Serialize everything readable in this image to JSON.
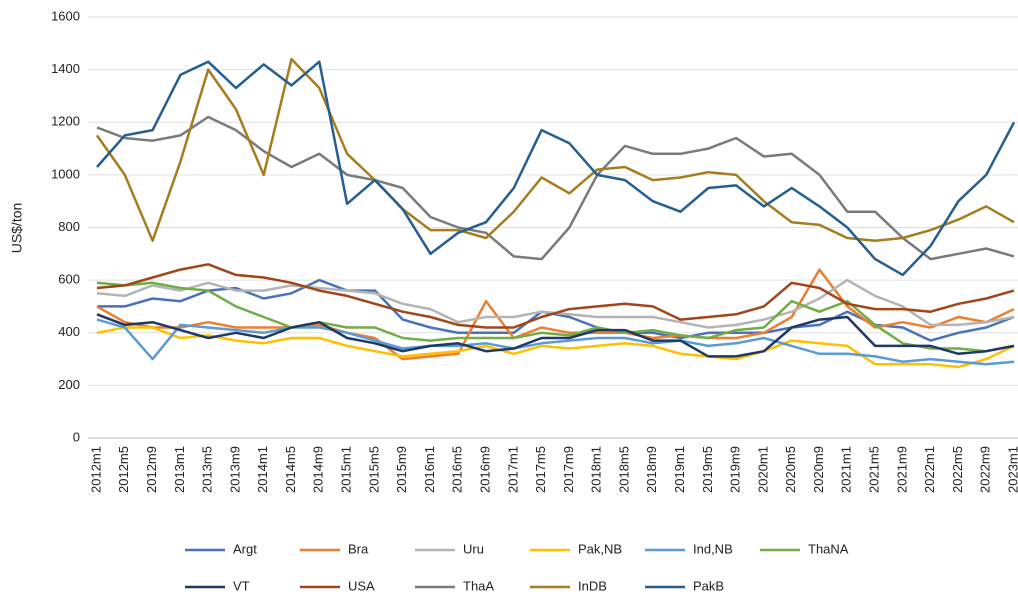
{
  "chart_data": {
    "type": "line",
    "y_label": "US$/ton",
    "categories": [
      "2012m1",
      "2012m5",
      "2012m9",
      "2013m1",
      "2013m5",
      "2013m9",
      "2014m1",
      "2014m5",
      "2014m9",
      "2015m1",
      "2015m5",
      "2015m9",
      "2016m1",
      "2016m5",
      "2016m9",
      "2017m1",
      "2017m5",
      "2017m9",
      "2018m1",
      "2018m5",
      "2018m9",
      "2019m1",
      "2019m5",
      "2019m9",
      "2020m1",
      "2020m5",
      "2020m9",
      "2021m1",
      "2021m5",
      "2021m9",
      "2022m1",
      "2022m5",
      "2022m9",
      "2023m1"
    ],
    "ylim": [
      0,
      1600
    ],
    "yticks": [
      0,
      200,
      400,
      600,
      800,
      1000,
      1200,
      1400,
      1600
    ],
    "grid": true,
    "legend": "bottom",
    "series": [
      {
        "name": "Argt",
        "color": "#4a72b8",
        "values": [
          500,
          500,
          530,
          520,
          560,
          570,
          530,
          550,
          600,
          560,
          560,
          450,
          420,
          400,
          400,
          400,
          480,
          460,
          420,
          400,
          400,
          380,
          400,
          400,
          400,
          420,
          430,
          480,
          430,
          420,
          370,
          400,
          420,
          460
        ]
      },
      {
        "name": "Bra",
        "color": "#ed7d31",
        "values": [
          500,
          440,
          420,
          420,
          440,
          420,
          420,
          420,
          430,
          400,
          380,
          300,
          310,
          320,
          520,
          380,
          420,
          400,
          400,
          400,
          380,
          390,
          380,
          380,
          400,
          460,
          640,
          500,
          420,
          440,
          420,
          460,
          440,
          490
        ]
      },
      {
        "name": "Uru",
        "color": "#b4b4b4",
        "values": [
          550,
          540,
          580,
          560,
          590,
          560,
          560,
          580,
          570,
          560,
          550,
          510,
          490,
          440,
          460,
          460,
          480,
          470,
          460,
          460,
          460,
          440,
          420,
          430,
          450,
          480,
          530,
          600,
          540,
          500,
          430,
          430,
          440,
          460
        ]
      },
      {
        "name": "Pak,NB",
        "color": "#ffc000",
        "values": [
          400,
          420,
          420,
          380,
          390,
          370,
          360,
          380,
          380,
          350,
          330,
          310,
          320,
          330,
          350,
          320,
          350,
          340,
          350,
          360,
          350,
          320,
          310,
          300,
          330,
          370,
          360,
          350,
          280,
          280,
          280,
          270,
          300,
          350
        ]
      },
      {
        "name": "Ind,NB",
        "color": "#5b9bd5",
        "values": [
          450,
          420,
          300,
          430,
          420,
          410,
          400,
          420,
          420,
          400,
          370,
          340,
          350,
          350,
          360,
          340,
          360,
          370,
          380,
          380,
          360,
          370,
          350,
          360,
          380,
          350,
          320,
          320,
          310,
          290,
          300,
          290,
          280,
          290
        ]
      },
      {
        "name": "ThaNA",
        "color": "#70ad47",
        "values": [
          590,
          580,
          590,
          570,
          560,
          500,
          460,
          420,
          440,
          420,
          420,
          380,
          370,
          380,
          380,
          380,
          400,
          390,
          420,
          400,
          410,
          390,
          380,
          410,
          420,
          520,
          480,
          520,
          430,
          360,
          340,
          340,
          330,
          350
        ]
      },
      {
        "name": "VT",
        "color": "#1f3864",
        "values": [
          470,
          430,
          440,
          410,
          380,
          400,
          380,
          420,
          440,
          380,
          360,
          330,
          350,
          360,
          330,
          340,
          380,
          380,
          410,
          410,
          370,
          370,
          310,
          310,
          330,
          420,
          450,
          460,
          350,
          350,
          350,
          320,
          330,
          350
        ]
      },
      {
        "name": "USA",
        "color": "#a0461a",
        "values": [
          570,
          580,
          610,
          640,
          660,
          620,
          610,
          590,
          560,
          540,
          510,
          480,
          460,
          430,
          420,
          420,
          460,
          490,
          500,
          510,
          500,
          450,
          460,
          470,
          500,
          590,
          570,
          510,
          490,
          490,
          480,
          510,
          530,
          560
        ]
      },
      {
        "name": "ThaA",
        "color": "#7a7a7a",
        "values": [
          1180,
          1140,
          1130,
          1150,
          1220,
          1170,
          1090,
          1030,
          1080,
          1000,
          980,
          950,
          840,
          800,
          780,
          690,
          680,
          800,
          1000,
          1110,
          1080,
          1080,
          1100,
          1140,
          1070,
          1080,
          1000,
          860,
          860,
          760,
          680,
          700,
          720,
          690
        ]
      },
      {
        "name": "InDB",
        "color": "#a67c1e",
        "values": [
          1150,
          1000,
          750,
          1050,
          1400,
          1250,
          1000,
          1440,
          1330,
          1080,
          980,
          870,
          790,
          790,
          760,
          860,
          990,
          930,
          1020,
          1030,
          980,
          990,
          1010,
          1000,
          900,
          820,
          810,
          760,
          750,
          760,
          790,
          830,
          880,
          820
        ]
      },
      {
        "name": "PakB",
        "color": "#255e91",
        "values": [
          1030,
          1150,
          1170,
          1380,
          1430,
          1330,
          1420,
          1340,
          1430,
          890,
          980,
          870,
          700,
          780,
          820,
          950,
          1170,
          1120,
          1000,
          980,
          900,
          860,
          950,
          960,
          880,
          950,
          880,
          800,
          680,
          620,
          730,
          900,
          1000,
          1200
        ]
      }
    ]
  }
}
